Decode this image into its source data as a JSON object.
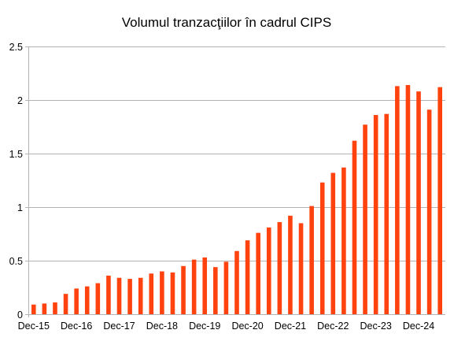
{
  "chart_data": {
    "type": "bar",
    "title": "Volumul tranzacţiilor în cadrul CIPS",
    "xlabel": "",
    "ylabel": "",
    "ylim": [
      0,
      2.5
    ],
    "y_ticks": [
      "0",
      "0.5",
      "1",
      "1.5",
      "2",
      "2.5"
    ],
    "y_tick_values": [
      0,
      0.5,
      1,
      1.5,
      2,
      2.5
    ],
    "x_tick_labels": [
      "Dec-15",
      "Dec-16",
      "Dec-17",
      "Dec-18",
      "Dec-19",
      "Dec-20",
      "Dec-21",
      "Dec-22",
      "Dec-23",
      "Dec-24"
    ],
    "x_tick_positions": [
      0,
      4,
      8,
      12,
      16,
      20,
      24,
      28,
      32,
      36
    ],
    "grid": "horizontal",
    "bar_color": "#ff420e",
    "grid_color": "#b3b3b3",
    "values": [
      0.09,
      0.1,
      0.11,
      0.19,
      0.24,
      0.26,
      0.29,
      0.36,
      0.34,
      0.33,
      0.34,
      0.38,
      0.4,
      0.39,
      0.45,
      0.51,
      0.53,
      0.44,
      0.49,
      0.59,
      0.69,
      0.76,
      0.81,
      0.86,
      0.92,
      0.85,
      1.01,
      1.23,
      1.32,
      1.37,
      1.62,
      1.77,
      1.86,
      1.87,
      2.13,
      2.14,
      2.08,
      1.91,
      2.12
    ]
  }
}
